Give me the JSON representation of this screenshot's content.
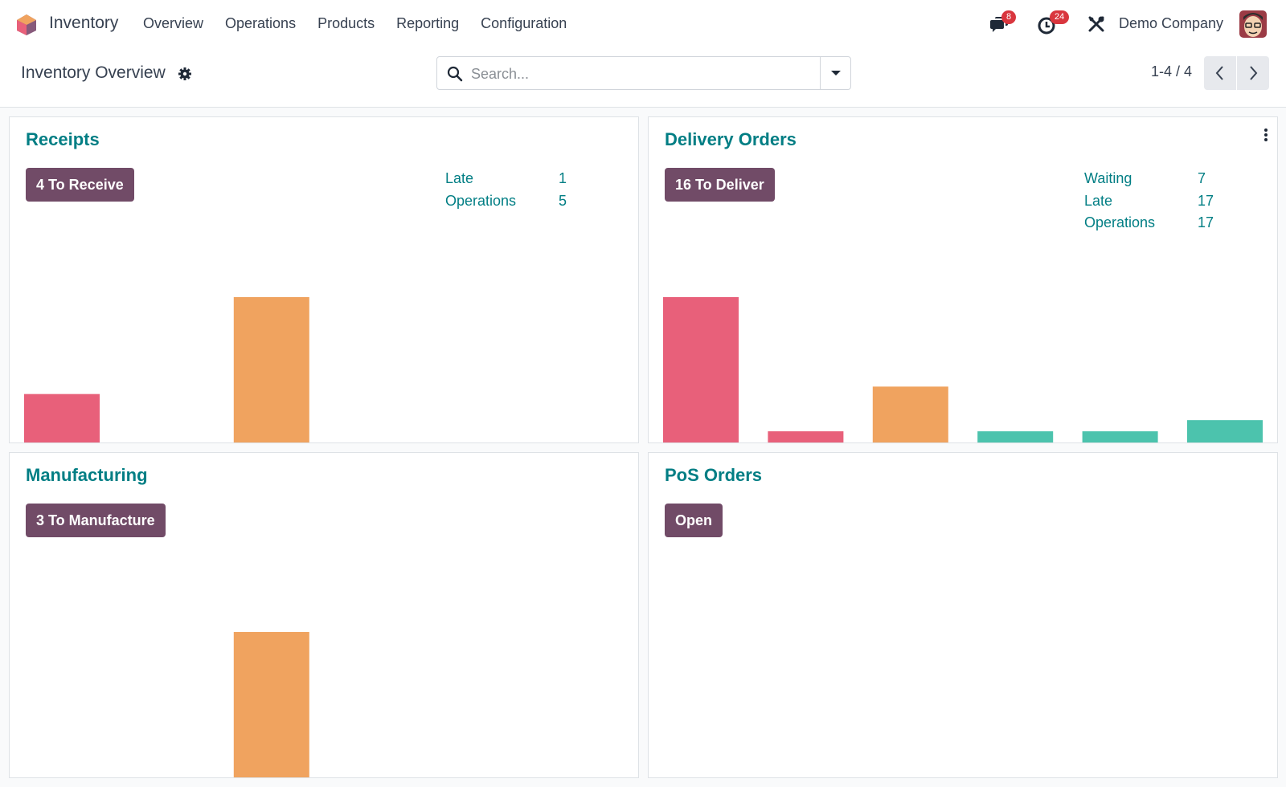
{
  "navbar": {
    "app_name": "Inventory",
    "menu": [
      "Overview",
      "Operations",
      "Products",
      "Reporting",
      "Configuration"
    ],
    "messages_count": "8",
    "activities_count": "24",
    "company": "Demo Company"
  },
  "control_panel": {
    "title": "Inventory Overview",
    "search_placeholder": "Search...",
    "pager": "1-4 / 4"
  },
  "colors": {
    "late": "#e8607a",
    "today": "#f0a35f",
    "future": "#4cc3ad",
    "primary": "#714b67",
    "link": "#017e84"
  },
  "cards": [
    {
      "title": "Receipts",
      "button": "4 To Receive",
      "stats": [
        {
          "label": "Late",
          "value": "1"
        },
        {
          "label": "Operations",
          "value": "5"
        }
      ],
      "chart_data": {
        "type": "bar",
        "values": [
          1,
          0,
          3,
          0,
          0,
          0
        ],
        "colors": [
          "#e8607a",
          "#e8607a",
          "#f0a35f",
          "#4cc3ad",
          "#4cc3ad",
          "#4cc3ad"
        ],
        "ymax": 3
      }
    },
    {
      "title": "Delivery Orders",
      "button": "16 To Deliver",
      "stats": [
        {
          "label": "Waiting",
          "value": "7"
        },
        {
          "label": "Late",
          "value": "17"
        },
        {
          "label": "Operations",
          "value": "17"
        }
      ],
      "chart_data": {
        "type": "bar",
        "values": [
          13,
          1,
          5,
          1,
          1,
          2
        ],
        "colors": [
          "#e8607a",
          "#e8607a",
          "#f0a35f",
          "#4cc3ad",
          "#4cc3ad",
          "#4cc3ad"
        ],
        "ymax": 13
      }
    },
    {
      "title": "Manufacturing",
      "button": "3 To Manufacture",
      "stats": [],
      "chart_data": {
        "type": "bar",
        "values": [
          0,
          0,
          3,
          0,
          0,
          0
        ],
        "colors": [
          "#e8607a",
          "#e8607a",
          "#f0a35f",
          "#4cc3ad",
          "#4cc3ad",
          "#4cc3ad"
        ],
        "ymax": 3
      }
    },
    {
      "title": "PoS Orders",
      "button": "Open",
      "stats": [],
      "chart_data": null
    }
  ]
}
